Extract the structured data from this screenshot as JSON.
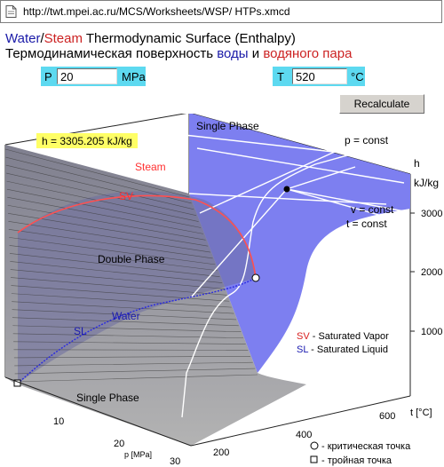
{
  "browser": {
    "url": "http://twt.mpei.ac.ru/MCS/Worksheets/WSP/ HTPs.xmcd",
    "page_icon": "document-icon"
  },
  "title": {
    "water": "Water",
    "slash": "/",
    "steam": "Steam",
    "rest": " Thermodynamic Surface (Enthalpy)"
  },
  "subtitle": {
    "prefix": "Термодинамическая поверхность ",
    "water": "воды",
    "and": " и ",
    "steam": "водяного пара"
  },
  "pressure": {
    "label": "P",
    "value": "20",
    "unit": "MPa"
  },
  "temperature": {
    "label": "T",
    "value": "520",
    "unit": "°C"
  },
  "recalculate_label": "Recalculate",
  "result": "h = 3305.205 kJ/kg",
  "chart_data": {
    "type": "surface3d",
    "region_labels": {
      "single_phase_top": "Single Phase",
      "steam": "Steam",
      "sv": "SV",
      "double_phase": "Double Phase",
      "water": "Water",
      "sl": "SL",
      "single_phase_bottom": "Single Phase"
    },
    "annotations": {
      "p_const": "p = const",
      "v_const": "v = const",
      "t_const": "t = const"
    },
    "h_axis": {
      "title": "h",
      "unit": "kJ/kg",
      "ticks": [
        "3000",
        "2000",
        "1000"
      ]
    },
    "t_axis": {
      "title": "t [°C]",
      "ticks": [
        "600",
        "400",
        "200"
      ]
    },
    "p_axis": {
      "title": "p [MPa]",
      "ticks": [
        "10",
        "20",
        "30"
      ]
    },
    "legend": {
      "sv_key": "SV",
      "sv_text": " - Saturated Vapor",
      "sl_key": "SL",
      "sl_text": " - Saturated Liquid",
      "critical": " - критическая точка",
      "triple": " - тройная точка"
    },
    "colors": {
      "surface_blue": "#7d7ff0",
      "surface_gray": "#8a8a8a",
      "sv_line": "#ff5050",
      "sl_line": "#2a2ae0",
      "result_box": "#ffff66"
    }
  }
}
